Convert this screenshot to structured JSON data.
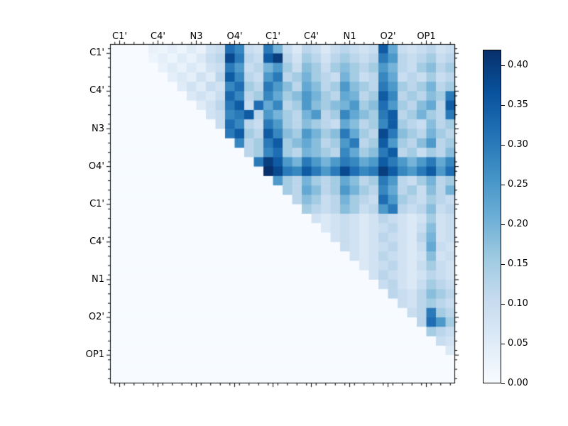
{
  "figure": {
    "background": "#ffffff"
  },
  "chart_data": {
    "type": "heatmap",
    "description": "Upper-triangular pairwise heatmap with atom-name tick labels and Blues colorbar",
    "x_tick_labels": [
      "C1'",
      "C4'",
      "N3",
      "O4'",
      "C1'",
      "C4'",
      "N1",
      "O2'",
      "OP1"
    ],
    "y_tick_labels": [
      "C1'",
      "C4'",
      "N3",
      "O4'",
      "C1'",
      "C4'",
      "N1",
      "O2'",
      "OP1"
    ],
    "tick_positions": [
      0,
      4,
      8,
      12,
      16,
      20,
      24,
      28,
      32
    ],
    "n_rows": 36,
    "n_cols": 36,
    "vmin": 0.0,
    "vmax": 0.42,
    "grid": false,
    "colormap": "Blues",
    "colormap_stops": [
      [
        0,
        "#f7fbff"
      ],
      [
        0.125,
        "#deebf7"
      ],
      [
        0.25,
        "#c6dbef"
      ],
      [
        0.375,
        "#9ecae1"
      ],
      [
        0.5,
        "#6baed6"
      ],
      [
        0.625,
        "#4292c6"
      ],
      [
        0.75,
        "#2171b5"
      ],
      [
        0.875,
        "#08519c"
      ],
      [
        1,
        "#08306b"
      ]
    ],
    "colorbar_ticks": [
      "0.00",
      "0.05",
      "0.10",
      "0.15",
      "0.20",
      "0.25",
      "0.30",
      "0.35",
      "0.40"
    ],
    "colorbar_tick_values": [
      0,
      0.05,
      0.1,
      0.15,
      0.2,
      0.25,
      0.3,
      0.35,
      0.4
    ],
    "colorbar_position": "right",
    "matrix": [
      [
        0,
        0,
        0,
        0,
        0.03,
        0.02,
        0.04,
        0.02,
        0.05,
        0.03,
        0.08,
        0.1,
        0.32,
        0.28,
        0.1,
        0.08,
        0.3,
        0.2,
        0.1,
        0.06,
        0.12,
        0.1,
        0.06,
        0.1,
        0.12,
        0.1,
        0.08,
        0.1,
        0.35,
        0.22,
        0.1,
        0.08,
        0.1,
        0.12,
        0.08,
        0.1
      ],
      [
        0,
        0,
        0,
        0,
        0.02,
        0.04,
        0.02,
        0.05,
        0.03,
        0.06,
        0.1,
        0.12,
        0.38,
        0.3,
        0.12,
        0.1,
        0.35,
        0.4,
        0.12,
        0.08,
        0.15,
        0.12,
        0.08,
        0.12,
        0.15,
        0.12,
        0.1,
        0.12,
        0.3,
        0.25,
        0.12,
        0.1,
        0.12,
        0.15,
        0.1,
        0.12
      ],
      [
        0,
        0,
        0,
        0,
        0,
        0.03,
        0.05,
        0.03,
        0.06,
        0.04,
        0.08,
        0.1,
        0.3,
        0.25,
        0.1,
        0.12,
        0.2,
        0.25,
        0.15,
        0.1,
        0.18,
        0.15,
        0.1,
        0.15,
        0.18,
        0.15,
        0.12,
        0.15,
        0.25,
        0.2,
        0.12,
        0.1,
        0.15,
        0.18,
        0.12,
        0.15
      ],
      [
        0,
        0,
        0,
        0,
        0,
        0,
        0.04,
        0.06,
        0.04,
        0.08,
        0.05,
        0.12,
        0.35,
        0.28,
        0.12,
        0.1,
        0.25,
        0.3,
        0.12,
        0.15,
        0.2,
        0.15,
        0.12,
        0.1,
        0.2,
        0.15,
        0.1,
        0.12,
        0.28,
        0.22,
        0.1,
        0.12,
        0.1,
        0.15,
        0.1,
        0.12
      ],
      [
        0,
        0,
        0,
        0,
        0,
        0,
        0,
        0.05,
        0.08,
        0.05,
        0.1,
        0.08,
        0.28,
        0.32,
        0.15,
        0.12,
        0.3,
        0.25,
        0.18,
        0.12,
        0.22,
        0.18,
        0.12,
        0.15,
        0.25,
        0.18,
        0.15,
        0.12,
        0.3,
        0.25,
        0.15,
        0.12,
        0.15,
        0.2,
        0.12,
        0.15
      ],
      [
        0,
        0,
        0,
        0,
        0,
        0,
        0,
        0,
        0.06,
        0.08,
        0.06,
        0.1,
        0.33,
        0.28,
        0.12,
        0.15,
        0.28,
        0.22,
        0.15,
        0.18,
        0.25,
        0.2,
        0.15,
        0.12,
        0.22,
        0.2,
        0.12,
        0.15,
        0.35,
        0.28,
        0.12,
        0.15,
        0.12,
        0.18,
        0.15,
        0.3
      ],
      [
        0,
        0,
        0,
        0,
        0,
        0,
        0,
        0,
        0,
        0.05,
        0.08,
        0.12,
        0.3,
        0.35,
        0.1,
        0.32,
        0.22,
        0.28,
        0.12,
        0.15,
        0.25,
        0.18,
        0.15,
        0.18,
        0.2,
        0.25,
        0.15,
        0.18,
        0.32,
        0.25,
        0.15,
        0.12,
        0.18,
        0.22,
        0.12,
        0.35
      ],
      [
        0,
        0,
        0,
        0,
        0,
        0,
        0,
        0,
        0,
        0,
        0.08,
        0.1,
        0.28,
        0.3,
        0.35,
        0.12,
        0.25,
        0.2,
        0.15,
        0.12,
        0.2,
        0.25,
        0.12,
        0.15,
        0.28,
        0.22,
        0.18,
        0.15,
        0.3,
        0.35,
        0.12,
        0.15,
        0.2,
        0.15,
        0.12,
        0.3
      ],
      [
        0,
        0,
        0,
        0,
        0,
        0,
        0,
        0,
        0,
        0,
        0,
        0.1,
        0.32,
        0.28,
        0.12,
        0.1,
        0.3,
        0.25,
        0.15,
        0.12,
        0.18,
        0.15,
        0.12,
        0.1,
        0.22,
        0.18,
        0.12,
        0.15,
        0.28,
        0.35,
        0.15,
        0.12,
        0.1,
        0.18,
        0.12,
        0.15
      ],
      [
        0,
        0,
        0,
        0,
        0,
        0,
        0,
        0,
        0,
        0,
        0,
        0,
        0.3,
        0.35,
        0.15,
        0.12,
        0.35,
        0.28,
        0.18,
        0.15,
        0.25,
        0.2,
        0.15,
        0.18,
        0.3,
        0.22,
        0.15,
        0.12,
        0.38,
        0.3,
        0.18,
        0.15,
        0.12,
        0.2,
        0.15,
        0.12
      ],
      [
        0,
        0,
        0,
        0,
        0,
        0,
        0,
        0,
        0,
        0,
        0,
        0,
        0,
        0.28,
        0.12,
        0.15,
        0.3,
        0.35,
        0.15,
        0.18,
        0.22,
        0.18,
        0.12,
        0.15,
        0.25,
        0.3,
        0.12,
        0.15,
        0.35,
        0.25,
        0.15,
        0.12,
        0.18,
        0.25,
        0.12,
        0.15
      ],
      [
        0,
        0,
        0,
        0,
        0,
        0,
        0,
        0,
        0,
        0,
        0,
        0,
        0,
        0,
        0.12,
        0.15,
        0.28,
        0.32,
        0.15,
        0.12,
        0.2,
        0.18,
        0.15,
        0.12,
        0.28,
        0.22,
        0.15,
        0.18,
        0.3,
        0.35,
        0.12,
        0.15,
        0.1,
        0.15,
        0.12,
        0.18
      ],
      [
        0,
        0,
        0,
        0,
        0,
        0,
        0,
        0,
        0,
        0,
        0,
        0,
        0,
        0,
        0,
        0.3,
        0.4,
        0.35,
        0.25,
        0.2,
        0.3,
        0.25,
        0.2,
        0.25,
        0.3,
        0.28,
        0.22,
        0.25,
        0.35,
        0.3,
        0.25,
        0.2,
        0.25,
        0.3,
        0.22,
        0.28
      ],
      [
        0,
        0,
        0,
        0,
        0,
        0,
        0,
        0,
        0,
        0,
        0,
        0,
        0,
        0,
        0,
        0,
        0.42,
        0.38,
        0.3,
        0.28,
        0.35,
        0.3,
        0.25,
        0.3,
        0.38,
        0.32,
        0.28,
        0.3,
        0.4,
        0.35,
        0.28,
        0.25,
        0.3,
        0.35,
        0.25,
        0.32
      ],
      [
        0,
        0,
        0,
        0,
        0,
        0,
        0,
        0,
        0,
        0,
        0,
        0,
        0,
        0,
        0,
        0,
        0,
        0.25,
        0.15,
        0.12,
        0.2,
        0.15,
        0.12,
        0.15,
        0.22,
        0.18,
        0.12,
        0.15,
        0.3,
        0.25,
        0.12,
        0.1,
        0.15,
        0.2,
        0.12,
        0.15
      ],
      [
        0,
        0,
        0,
        0,
        0,
        0,
        0,
        0,
        0,
        0,
        0,
        0,
        0,
        0,
        0,
        0,
        0,
        0,
        0.15,
        0.12,
        0.22,
        0.18,
        0.12,
        0.15,
        0.25,
        0.2,
        0.15,
        0.12,
        0.28,
        0.22,
        0.12,
        0.15,
        0.1,
        0.18,
        0.12,
        0.2
      ],
      [
        0,
        0,
        0,
        0,
        0,
        0,
        0,
        0,
        0,
        0,
        0,
        0,
        0,
        0,
        0,
        0,
        0,
        0,
        0,
        0.12,
        0.18,
        0.15,
        0.1,
        0.12,
        0.2,
        0.15,
        0.12,
        0.1,
        0.32,
        0.25,
        0.15,
        0.12,
        0.1,
        0.15,
        0.12,
        0.1
      ],
      [
        0,
        0,
        0,
        0,
        0,
        0,
        0,
        0,
        0,
        0,
        0,
        0,
        0,
        0,
        0,
        0,
        0,
        0,
        0,
        0,
        0.15,
        0.12,
        0.1,
        0.12,
        0.18,
        0.15,
        0.1,
        0.12,
        0.25,
        0.3,
        0.12,
        0.1,
        0.12,
        0.18,
        0.1,
        0.12
      ],
      [
        0,
        0,
        0,
        0,
        0,
        0,
        0,
        0,
        0,
        0,
        0,
        0,
        0,
        0,
        0,
        0,
        0,
        0,
        0,
        0,
        0,
        0.08,
        0.06,
        0.08,
        0.1,
        0.08,
        0.06,
        0.08,
        0.12,
        0.1,
        0.08,
        0.06,
        0.08,
        0.15,
        0.08,
        0.1
      ],
      [
        0,
        0,
        0,
        0,
        0,
        0,
        0,
        0,
        0,
        0,
        0,
        0,
        0,
        0,
        0,
        0,
        0,
        0,
        0,
        0,
        0,
        0,
        0.06,
        0.08,
        0.1,
        0.08,
        0.06,
        0.08,
        0.1,
        0.12,
        0.08,
        0.06,
        0.1,
        0.18,
        0.08,
        0.1
      ],
      [
        0,
        0,
        0,
        0,
        0,
        0,
        0,
        0,
        0,
        0,
        0,
        0,
        0,
        0,
        0,
        0,
        0,
        0,
        0,
        0,
        0,
        0,
        0,
        0.08,
        0.1,
        0.08,
        0.06,
        0.08,
        0.12,
        0.1,
        0.08,
        0.06,
        0.12,
        0.2,
        0.08,
        0.1
      ],
      [
        0,
        0,
        0,
        0,
        0,
        0,
        0,
        0,
        0,
        0,
        0,
        0,
        0,
        0,
        0,
        0,
        0,
        0,
        0,
        0,
        0,
        0,
        0,
        0,
        0.1,
        0.08,
        0.06,
        0.08,
        0.1,
        0.12,
        0.08,
        0.06,
        0.1,
        0.22,
        0.1,
        0.08
      ],
      [
        0,
        0,
        0,
        0,
        0,
        0,
        0,
        0,
        0,
        0,
        0,
        0,
        0,
        0,
        0,
        0,
        0,
        0,
        0,
        0,
        0,
        0,
        0,
        0,
        0,
        0.08,
        0.06,
        0.08,
        0.12,
        0.1,
        0.08,
        0.06,
        0.08,
        0.18,
        0.08,
        0.1
      ],
      [
        0,
        0,
        0,
        0,
        0,
        0,
        0,
        0,
        0,
        0,
        0,
        0,
        0,
        0,
        0,
        0,
        0,
        0,
        0,
        0,
        0,
        0,
        0,
        0,
        0,
        0,
        0.06,
        0.08,
        0.1,
        0.12,
        0.08,
        0.06,
        0.1,
        0.15,
        0.1,
        0.08
      ],
      [
        0,
        0,
        0,
        0,
        0,
        0,
        0,
        0,
        0,
        0,
        0,
        0,
        0,
        0,
        0,
        0,
        0,
        0,
        0,
        0,
        0,
        0,
        0,
        0,
        0,
        0,
        0,
        0.08,
        0.12,
        0.1,
        0.08,
        0.06,
        0.08,
        0.12,
        0.1,
        0.08
      ],
      [
        0,
        0,
        0,
        0,
        0,
        0,
        0,
        0,
        0,
        0,
        0,
        0,
        0,
        0,
        0,
        0,
        0,
        0,
        0,
        0,
        0,
        0,
        0,
        0,
        0,
        0,
        0,
        0,
        0.1,
        0.12,
        0.08,
        0.06,
        0.1,
        0.15,
        0.12,
        0.1
      ],
      [
        0,
        0,
        0,
        0,
        0,
        0,
        0,
        0,
        0,
        0,
        0,
        0,
        0,
        0,
        0,
        0,
        0,
        0,
        0,
        0,
        0,
        0,
        0,
        0,
        0,
        0,
        0,
        0,
        0,
        0.12,
        0.1,
        0.08,
        0.12,
        0.18,
        0.15,
        0.12
      ],
      [
        0,
        0,
        0,
        0,
        0,
        0,
        0,
        0,
        0,
        0,
        0,
        0,
        0,
        0,
        0,
        0,
        0,
        0,
        0,
        0,
        0,
        0,
        0,
        0,
        0,
        0,
        0,
        0,
        0,
        0,
        0.1,
        0.08,
        0.12,
        0.15,
        0.12,
        0.1
      ],
      [
        0,
        0,
        0,
        0,
        0,
        0,
        0,
        0,
        0,
        0,
        0,
        0,
        0,
        0,
        0,
        0,
        0,
        0,
        0,
        0,
        0,
        0,
        0,
        0,
        0,
        0,
        0,
        0,
        0,
        0,
        0,
        0.1,
        0.12,
        0.3,
        0.15,
        0.12
      ],
      [
        0,
        0,
        0,
        0,
        0,
        0,
        0,
        0,
        0,
        0,
        0,
        0,
        0,
        0,
        0,
        0,
        0,
        0,
        0,
        0,
        0,
        0,
        0,
        0,
        0,
        0,
        0,
        0,
        0,
        0,
        0,
        0,
        0.12,
        0.32,
        0.25,
        0.15
      ],
      [
        0,
        0,
        0,
        0,
        0,
        0,
        0,
        0,
        0,
        0,
        0,
        0,
        0,
        0,
        0,
        0,
        0,
        0,
        0,
        0,
        0,
        0,
        0,
        0,
        0,
        0,
        0,
        0,
        0,
        0,
        0,
        0,
        0,
        0.15,
        0.12,
        0.1
      ],
      [
        0,
        0,
        0,
        0,
        0,
        0,
        0,
        0,
        0,
        0,
        0,
        0,
        0,
        0,
        0,
        0,
        0,
        0,
        0,
        0,
        0,
        0,
        0,
        0,
        0,
        0,
        0,
        0,
        0,
        0,
        0,
        0,
        0,
        0,
        0.1,
        0.08
      ],
      [
        0,
        0,
        0,
        0,
        0,
        0,
        0,
        0,
        0,
        0,
        0,
        0,
        0,
        0,
        0,
        0,
        0,
        0,
        0,
        0,
        0,
        0,
        0,
        0,
        0,
        0,
        0,
        0,
        0,
        0,
        0,
        0,
        0,
        0,
        0,
        0.06
      ],
      [
        0,
        0,
        0,
        0,
        0,
        0,
        0,
        0,
        0,
        0,
        0,
        0,
        0,
        0,
        0,
        0,
        0,
        0,
        0,
        0,
        0,
        0,
        0,
        0,
        0,
        0,
        0,
        0,
        0,
        0,
        0,
        0,
        0,
        0,
        0,
        0
      ],
      [
        0,
        0,
        0,
        0,
        0,
        0,
        0,
        0,
        0,
        0,
        0,
        0,
        0,
        0,
        0,
        0,
        0,
        0,
        0,
        0,
        0,
        0,
        0,
        0,
        0,
        0,
        0,
        0,
        0,
        0,
        0,
        0,
        0,
        0,
        0,
        0
      ],
      [
        0,
        0,
        0,
        0,
        0,
        0,
        0,
        0,
        0,
        0,
        0,
        0,
        0,
        0,
        0,
        0,
        0,
        0,
        0,
        0,
        0,
        0,
        0,
        0,
        0,
        0,
        0,
        0,
        0,
        0,
        0,
        0,
        0,
        0,
        0,
        0
      ]
    ]
  }
}
